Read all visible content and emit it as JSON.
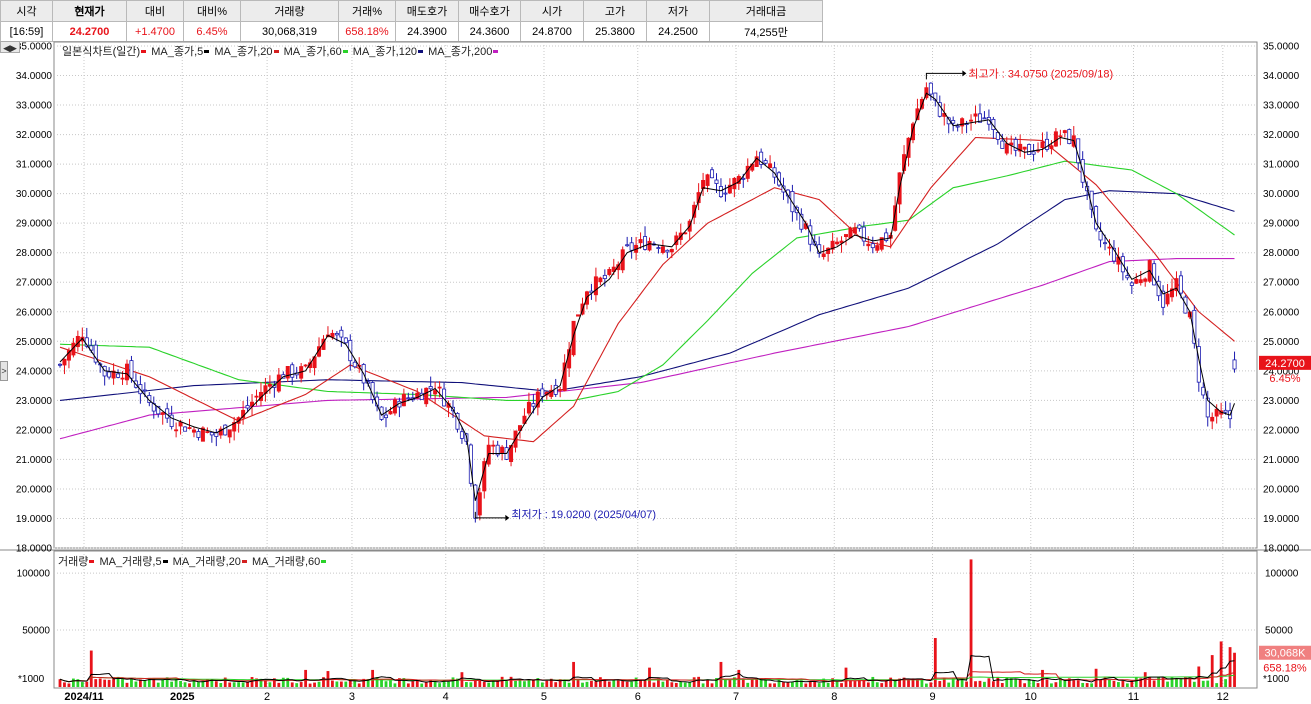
{
  "quote": {
    "headers": [
      "시각",
      "현재가",
      "대비",
      "대비%",
      "거래량",
      "거래%",
      "매도호가",
      "매수호가",
      "시가",
      "고가",
      "저가",
      "거래대금"
    ],
    "values": [
      "[16:59]",
      "24.2700",
      "+1.4700",
      "6.45%",
      "30,068,319",
      "658.18%",
      "24.3900",
      "24.3600",
      "24.8700",
      "25.3800",
      "24.2500",
      "74,255만"
    ]
  },
  "nav": {
    "arrows": "◀▶",
    "side_toggle": ">"
  },
  "legend": {
    "price": [
      "일본식차트(일간)",
      "MA_종가,5",
      "MA_종가,20",
      "MA_종가,60",
      "MA_종가,120",
      "MA_종가,200"
    ],
    "volume": [
      "거래량",
      "MA_거래량,5",
      "MA_거래량,20",
      "MA_거래량,60"
    ]
  },
  "colors": {
    "up": "#e8131a",
    "down": "#1b1bb0",
    "ma5": "#000000",
    "ma20": "#d42020",
    "ma60": "#2ad22a",
    "ma120": "#10107a",
    "ma200": "#c020c0",
    "vol_up": "#e8131a",
    "vol_down": "#2ad22a",
    "grid": "#c8c8c8"
  },
  "chart_data": [
    {
      "type": "candlestick",
      "title": "일본식차트(일간)",
      "ylim": [
        18,
        35
      ],
      "y_ticks": [
        "18.0000",
        "19.0000",
        "20.0000",
        "21.0000",
        "22.0000",
        "23.0000",
        "24.0000",
        "25.0000",
        "26.0000",
        "27.0000",
        "28.0000",
        "29.0000",
        "30.0000",
        "31.0000",
        "32.0000",
        "33.0000",
        "34.0000",
        "35.0000"
      ],
      "x_ticks": [
        "2024/11",
        "2025",
        "2",
        "3",
        "4",
        "5",
        "6",
        "7",
        "8",
        "9",
        "10",
        "11",
        "12"
      ],
      "last_price": "24.2700",
      "last_change_pct": "6.45%",
      "anchors": [
        [
          0,
          24.2
        ],
        [
          5,
          25.3
        ],
        [
          10,
          23.9
        ],
        [
          15,
          24.0
        ],
        [
          20,
          22.9
        ],
        [
          25,
          22.3
        ],
        [
          30,
          22.0
        ],
        [
          35,
          21.8
        ],
        [
          40,
          22.4
        ],
        [
          45,
          23.3
        ],
        [
          50,
          23.9
        ],
        [
          55,
          24.0
        ],
        [
          60,
          25.4
        ],
        [
          64,
          24.8
        ],
        [
          68,
          23.7
        ],
        [
          72,
          22.3
        ],
        [
          76,
          23.0
        ],
        [
          80,
          23.2
        ],
        [
          84,
          23.5
        ],
        [
          88,
          22.6
        ],
        [
          91,
          21.6
        ],
        [
          93,
          19.2
        ],
        [
          96,
          21.5
        ],
        [
          100,
          21.2
        ],
        [
          104,
          22.5
        ],
        [
          108,
          23.3
        ],
        [
          112,
          23.5
        ],
        [
          115,
          25.6
        ],
        [
          118,
          26.8
        ],
        [
          123,
          27.2
        ],
        [
          127,
          28.1
        ],
        [
          132,
          28.4
        ],
        [
          137,
          28.2
        ],
        [
          141,
          29.0
        ],
        [
          144,
          30.5
        ],
        [
          148,
          30.1
        ],
        [
          152,
          30.5
        ],
        [
          156,
          31.3
        ],
        [
          160,
          30.6
        ],
        [
          164,
          29.5
        ],
        [
          167,
          28.8
        ],
        [
          170,
          27.8
        ],
        [
          174,
          28.3
        ],
        [
          178,
          28.7
        ],
        [
          182,
          28.3
        ],
        [
          186,
          28.6
        ],
        [
          188,
          30.6
        ],
        [
          191,
          32.5
        ],
        [
          194,
          33.6
        ],
        [
          196,
          33.0
        ],
        [
          200,
          32.2
        ],
        [
          204,
          32.5
        ],
        [
          208,
          32.6
        ],
        [
          212,
          31.5
        ],
        [
          216,
          31.4
        ],
        [
          220,
          31.6
        ],
        [
          224,
          32.0
        ],
        [
          227,
          31.8
        ],
        [
          229,
          30.5
        ],
        [
          232,
          28.6
        ],
        [
          236,
          27.9
        ],
        [
          240,
          26.9
        ],
        [
          244,
          27.5
        ],
        [
          247,
          26.3
        ],
        [
          250,
          26.9
        ],
        [
          253,
          25.8
        ],
        [
          255,
          23.8
        ],
        [
          257,
          22.4
        ],
        [
          260,
          22.5
        ],
        [
          262,
          22.4
        ],
        [
          263,
          24.27
        ]
      ],
      "ma_anchors": {
        "ma20": [
          [
            0,
            24.8
          ],
          [
            20,
            23.8
          ],
          [
            40,
            22.3
          ],
          [
            55,
            23.2
          ],
          [
            65,
            24.2
          ],
          [
            80,
            23.3
          ],
          [
            95,
            21.8
          ],
          [
            106,
            21.6
          ],
          [
            115,
            22.8
          ],
          [
            125,
            25.6
          ],
          [
            135,
            27.6
          ],
          [
            145,
            29.0
          ],
          [
            160,
            30.2
          ],
          [
            170,
            29.8
          ],
          [
            180,
            28.4
          ],
          [
            186,
            28.2
          ],
          [
            195,
            30.2
          ],
          [
            205,
            31.9
          ],
          [
            220,
            31.8
          ],
          [
            232,
            30.3
          ],
          [
            245,
            28.0
          ],
          [
            255,
            26.0
          ],
          [
            263,
            25.0
          ]
        ],
        "ma60": [
          [
            0,
            24.9
          ],
          [
            20,
            24.8
          ],
          [
            40,
            23.7
          ],
          [
            60,
            23.3
          ],
          [
            80,
            23.2
          ],
          [
            100,
            23.0
          ],
          [
            115,
            23.0
          ],
          [
            125,
            23.3
          ],
          [
            135,
            24.2
          ],
          [
            145,
            25.7
          ],
          [
            155,
            27.3
          ],
          [
            165,
            28.5
          ],
          [
            180,
            28.9
          ],
          [
            190,
            29.1
          ],
          [
            200,
            30.2
          ],
          [
            212,
            30.6
          ],
          [
            225,
            31.1
          ],
          [
            240,
            30.8
          ],
          [
            250,
            30.0
          ],
          [
            263,
            28.6
          ]
        ],
        "ma120": [
          [
            0,
            23.0
          ],
          [
            30,
            23.5
          ],
          [
            60,
            23.7
          ],
          [
            90,
            23.6
          ],
          [
            110,
            23.3
          ],
          [
            130,
            23.8
          ],
          [
            150,
            24.6
          ],
          [
            170,
            25.9
          ],
          [
            190,
            26.8
          ],
          [
            210,
            28.3
          ],
          [
            225,
            29.8
          ],
          [
            235,
            30.1
          ],
          [
            250,
            30.0
          ],
          [
            263,
            29.4
          ]
        ],
        "ma200": [
          [
            0,
            21.7
          ],
          [
            20,
            22.5
          ],
          [
            60,
            23.0
          ],
          [
            100,
            23.1
          ],
          [
            130,
            23.6
          ],
          [
            160,
            24.6
          ],
          [
            190,
            25.5
          ],
          [
            220,
            26.9
          ],
          [
            235,
            27.7
          ],
          [
            250,
            27.8
          ],
          [
            263,
            27.8
          ]
        ],
        "ma5": [
          [
            0,
            24.3
          ],
          [
            5,
            25.1
          ],
          [
            10,
            24.0
          ],
          [
            15,
            23.9
          ],
          [
            20,
            23.0
          ],
          [
            25,
            22.4
          ],
          [
            30,
            22.1
          ],
          [
            35,
            21.9
          ],
          [
            40,
            22.3
          ],
          [
            45,
            23.1
          ],
          [
            50,
            23.8
          ],
          [
            55,
            24.0
          ],
          [
            60,
            25.2
          ],
          [
            64,
            24.9
          ],
          [
            68,
            23.9
          ],
          [
            72,
            22.5
          ],
          [
            76,
            22.9
          ],
          [
            80,
            23.1
          ],
          [
            84,
            23.4
          ],
          [
            88,
            22.7
          ],
          [
            91,
            21.8
          ],
          [
            93,
            19.6
          ],
          [
            96,
            21.2
          ],
          [
            100,
            21.2
          ],
          [
            104,
            22.2
          ],
          [
            108,
            23.1
          ],
          [
            112,
            23.5
          ],
          [
            115,
            25.2
          ],
          [
            118,
            26.5
          ],
          [
            123,
            27.1
          ],
          [
            127,
            28.0
          ],
          [
            132,
            28.3
          ],
          [
            137,
            28.2
          ],
          [
            141,
            28.9
          ],
          [
            144,
            30.2
          ],
          [
            148,
            30.1
          ],
          [
            152,
            30.4
          ],
          [
            156,
            31.2
          ],
          [
            160,
            30.7
          ],
          [
            164,
            29.7
          ],
          [
            167,
            29.0
          ],
          [
            170,
            28.0
          ],
          [
            174,
            28.2
          ],
          [
            178,
            28.6
          ],
          [
            182,
            28.4
          ],
          [
            186,
            28.5
          ],
          [
            188,
            30.2
          ],
          [
            191,
            32.2
          ],
          [
            194,
            33.4
          ],
          [
            196,
            33.2
          ],
          [
            200,
            32.3
          ],
          [
            204,
            32.4
          ],
          [
            208,
            32.5
          ],
          [
            212,
            31.7
          ],
          [
            216,
            31.4
          ],
          [
            220,
            31.5
          ],
          [
            224,
            31.9
          ],
          [
            227,
            31.8
          ],
          [
            229,
            30.8
          ],
          [
            232,
            29.0
          ],
          [
            236,
            28.1
          ],
          [
            240,
            27.1
          ],
          [
            244,
            27.4
          ],
          [
            247,
            26.6
          ],
          [
            250,
            26.8
          ],
          [
            253,
            26.0
          ],
          [
            255,
            24.4
          ],
          [
            257,
            23.0
          ],
          [
            260,
            22.6
          ],
          [
            262,
            22.5
          ],
          [
            263,
            22.9
          ]
        ]
      },
      "annotations": [
        {
          "text": "최고가 : 34.0750 (2025/09/18)",
          "index": 194,
          "value": 34.075
        },
        {
          "text": "최저가 : 19.0200 (2025/04/07)",
          "index": 93,
          "value": 19.02
        }
      ]
    },
    {
      "type": "bar",
      "title": "거래량",
      "unit_label": "*1000",
      "ylim": [
        0,
        115000
      ],
      "y_ticks": [
        "50000",
        "100000"
      ],
      "last_volume": "30,068K",
      "last_volume_pct": "658.18%",
      "spikes": [
        [
          7,
          32000
        ],
        [
          55,
          15000
        ],
        [
          60,
          14000
        ],
        [
          70,
          15000
        ],
        [
          90,
          13000
        ],
        [
          115,
          22000
        ],
        [
          132,
          17000
        ],
        [
          148,
          22000
        ],
        [
          152,
          15000
        ],
        [
          176,
          17000
        ],
        [
          196,
          43000
        ],
        [
          204,
          112000
        ],
        [
          220,
          15000
        ],
        [
          232,
          16000
        ],
        [
          243,
          13000
        ],
        [
          255,
          18000
        ],
        [
          258,
          28000
        ],
        [
          260,
          40000
        ],
        [
          262,
          35000
        ],
        [
          263,
          30068
        ]
      ],
      "base_volume": [
        3000,
        9000
      ]
    }
  ]
}
